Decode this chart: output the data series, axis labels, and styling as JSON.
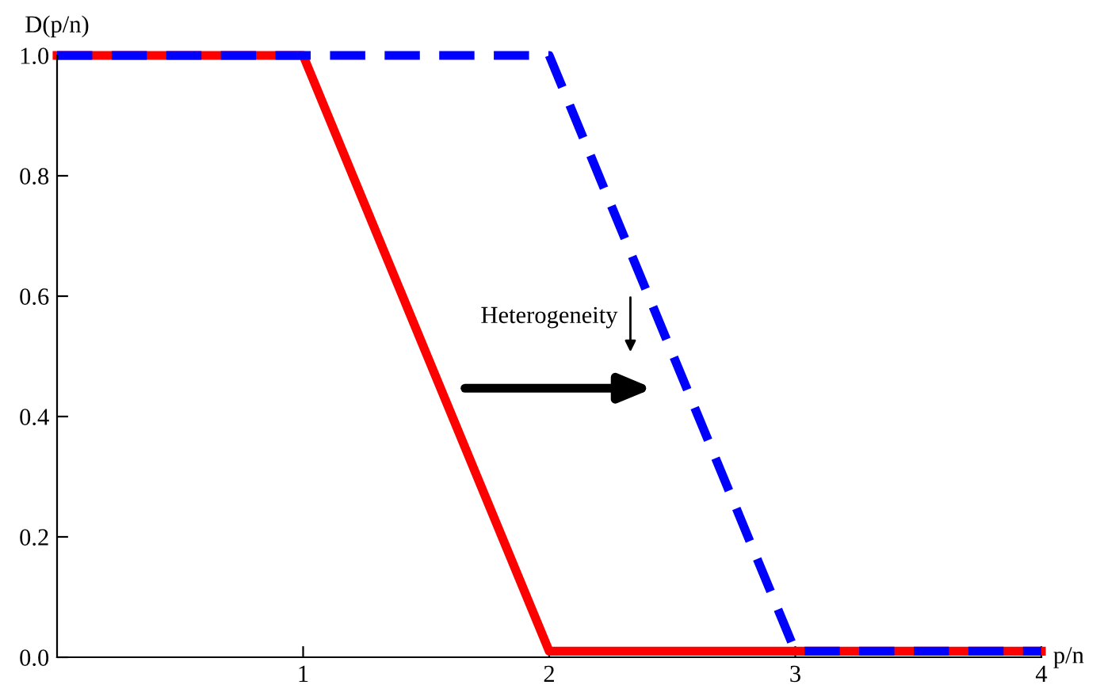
{
  "chart_data": {
    "type": "line",
    "xlabel": "p/n",
    "ylabel": "D(p/n)",
    "x": [
      0,
      1,
      2,
      3,
      4
    ],
    "series": [
      {
        "color": "#ff0000",
        "values": [
          1,
          1,
          0.01,
          0.01,
          0.01
        ],
        "line_style": "solid"
      },
      {
        "color": "#0000ff",
        "values": [
          1,
          1,
          1,
          0.01,
          0.01
        ],
        "line_style": "dashed"
      }
    ],
    "xlim": [
      0,
      4
    ],
    "ylim": [
      0,
      1
    ],
    "xticks": [
      1,
      2,
      3,
      4
    ],
    "yticks": [
      {
        "value": 0,
        "label": "0.0"
      },
      {
        "value": 0.2,
        "label": "0.2"
      },
      {
        "value": 0.4,
        "label": "0.4"
      },
      {
        "value": 0.6,
        "label": "0.6"
      },
      {
        "value": 0.8,
        "label": "0.8"
      },
      {
        "value": 1,
        "label": "1.0"
      }
    ],
    "annotations": [
      "Heterogeneity"
    ],
    "grid": false,
    "legend": false
  }
}
